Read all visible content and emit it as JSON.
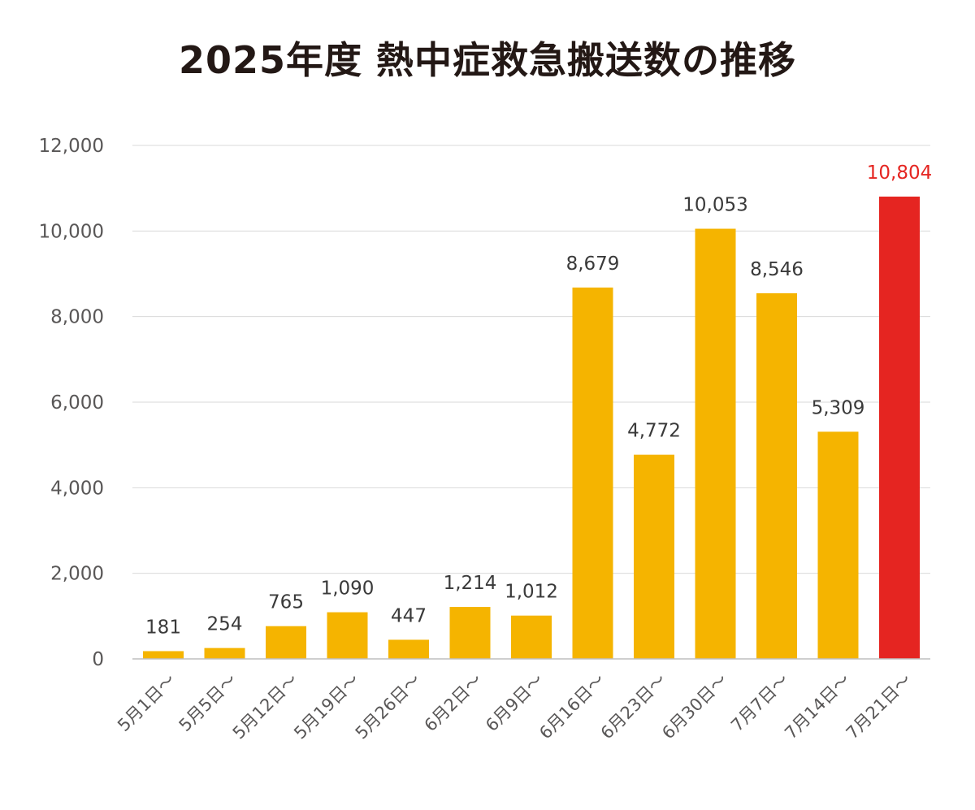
{
  "chart_data": {
    "type": "bar",
    "title": "2025年度 熱中症救急搬送数の推移",
    "xlabel": "",
    "ylabel": "",
    "ylim": [
      0,
      12000
    ],
    "yticks": [
      0,
      2000,
      4000,
      6000,
      8000,
      10000,
      12000
    ],
    "ytick_labels": [
      "0",
      "2,000",
      "4,000",
      "6,000",
      "8,000",
      "10,000",
      "12,000"
    ],
    "grid": true,
    "categories": [
      "5月1日～",
      "5月5日～",
      "5月12日～",
      "5月19日～",
      "5月26日～",
      "6月2日～",
      "6月9日～",
      "6月16日～",
      "6月23日～",
      "6月30日～",
      "7月7日～",
      "7月14日～",
      "7月21日～"
    ],
    "values": [
      181,
      254,
      765,
      1090,
      447,
      1214,
      1012,
      8679,
      4772,
      10053,
      8546,
      5309,
      10804
    ],
    "data_labels": [
      "181",
      "254",
      "765",
      "1,090",
      "447",
      "1,214",
      "1,012",
      "8,679",
      "4,772",
      "10,053",
      "8,546",
      "5,309",
      "10,804"
    ],
    "colors": {
      "bar": "#f5b400",
      "highlight_bar": "#e52521",
      "highlight_label": "#e52521",
      "label": "#3a3a3a",
      "tick": "#595757",
      "grid": "#d9d9d9",
      "axis": "#bfbfbf"
    },
    "highlight_index": 12
  }
}
